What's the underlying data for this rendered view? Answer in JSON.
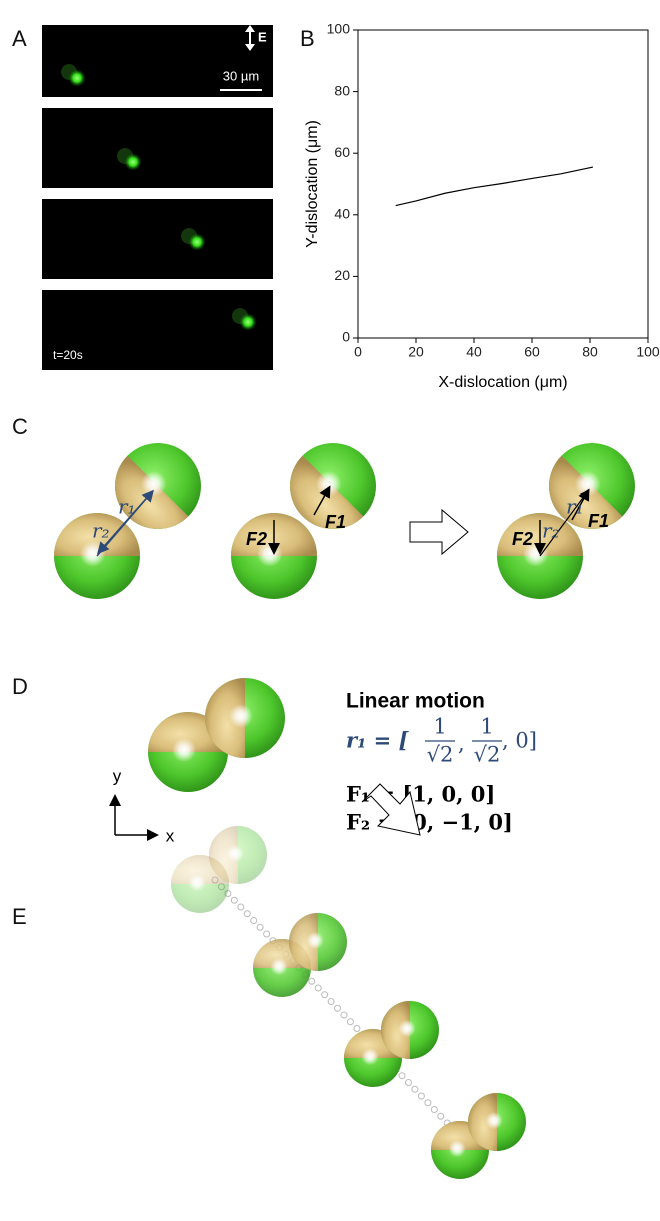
{
  "panel_labels": [
    "A",
    "B",
    "C",
    "D",
    "E"
  ],
  "panel_a": {
    "field_label": "E",
    "scale_bar": "30 µm",
    "time_label": "t=20s"
  },
  "chart_data": {
    "type": "line",
    "xlabel": "X-dislocation (μm)",
    "ylabel": "Y-dislocation (μm)",
    "x": [
      13,
      20,
      30,
      40,
      50,
      60,
      70,
      81
    ],
    "series": [
      {
        "color": "#000000",
        "values": [
          43,
          44.5,
          47,
          48.8,
          50.2,
          51.8,
          53.3,
          55.5
        ]
      }
    ],
    "xlim": [
      0,
      100
    ],
    "ylim": [
      0,
      100
    ],
    "xticks": [
      0,
      20,
      40,
      60,
      80,
      100
    ],
    "yticks": [
      0,
      20,
      40,
      60,
      80,
      100
    ]
  },
  "panel_c": {
    "r1": "r₁",
    "r2": "r₂",
    "f1": "F1",
    "f2": "F2"
  },
  "panel_d": {
    "title": "Linear motion",
    "axis_y": "y",
    "axis_x": "x",
    "r1_lhs": "r₁ = [",
    "frac_num": "1",
    "frac_den": "√2",
    "sep": ",",
    "r1_tail": ", 0]",
    "f1": "F₁ = [1, 0, 0]",
    "f2": "F₂ = [0, −1, 0]"
  }
}
